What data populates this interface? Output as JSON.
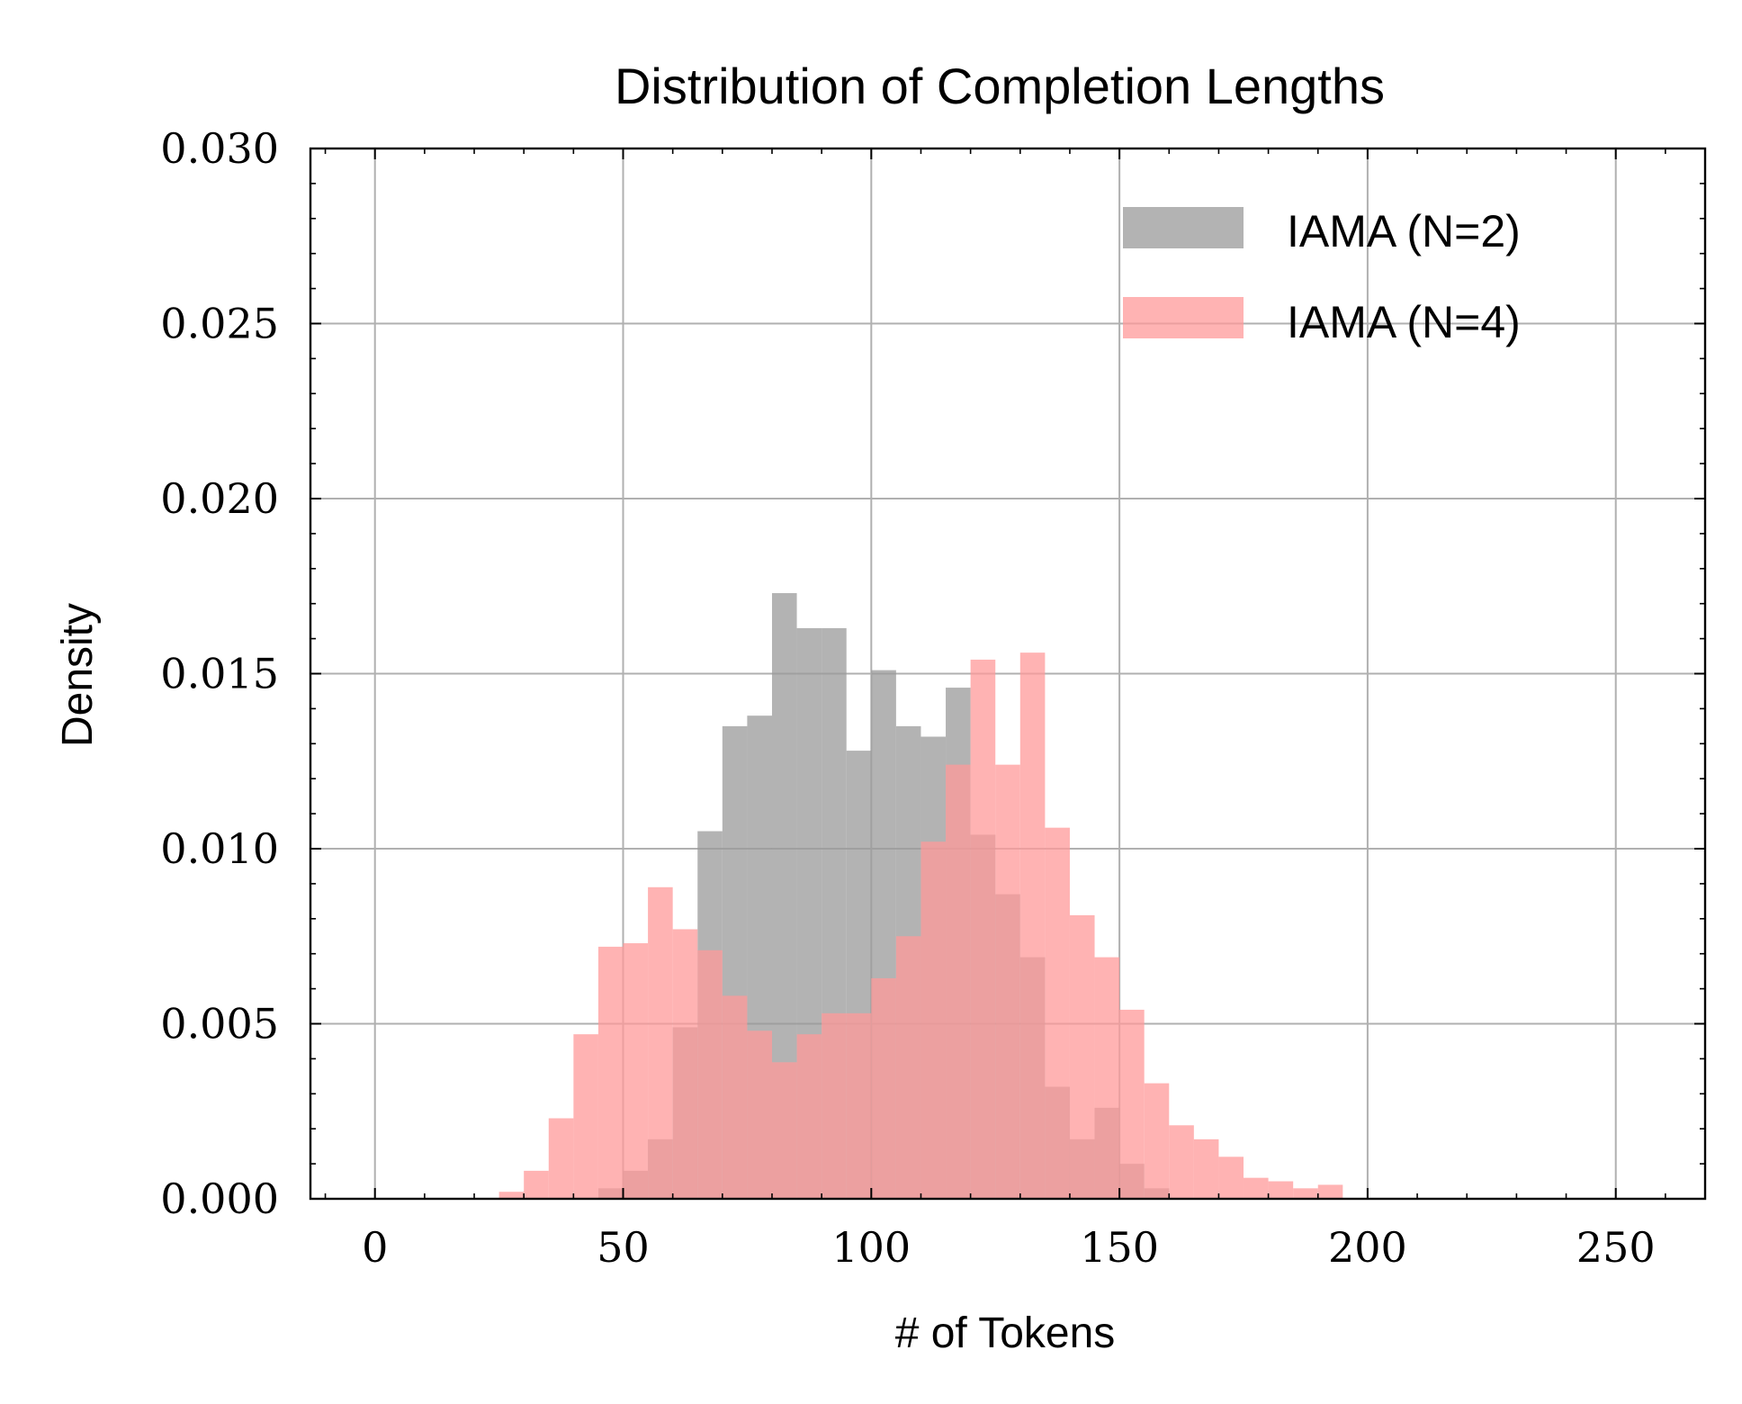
{
  "chart_data": {
    "type": "bar",
    "title": "Distribution of Completion Lengths",
    "xlabel": "# of Tokens",
    "ylabel": "Density",
    "xlim": [
      -13,
      268
    ],
    "ylim": [
      0,
      0.03
    ],
    "xticks": [
      0,
      50,
      100,
      150,
      200,
      250
    ],
    "xtick_labels": [
      "0",
      "50",
      "100",
      "150",
      "200",
      "250"
    ],
    "yticks": [
      0,
      0.005,
      0.01,
      0.015,
      0.02,
      0.025,
      0.03
    ],
    "ytick_labels": [
      "0.000",
      "0.005",
      "0.010",
      "0.015",
      "0.020",
      "0.025",
      "0.030"
    ],
    "grid": true,
    "legend_position": "top-right",
    "bin_width": 5,
    "series": [
      {
        "name": "IAMA (N=2)",
        "color": "#999999",
        "opacity": 0.75,
        "bin_starts": [
          45,
          50,
          55,
          60,
          65,
          70,
          75,
          80,
          85,
          90,
          95,
          100,
          105,
          110,
          115,
          120,
          125,
          130,
          135,
          140,
          145,
          150,
          155
        ],
        "values": [
          0.0003,
          0.0008,
          0.0017,
          0.0049,
          0.0105,
          0.0135,
          0.0138,
          0.0173,
          0.0163,
          0.0163,
          0.0128,
          0.0151,
          0.0135,
          0.0132,
          0.0146,
          0.0104,
          0.0087,
          0.0069,
          0.0032,
          0.0017,
          0.0026,
          0.001,
          0.0003
        ]
      },
      {
        "name": "IAMA (N=4)",
        "color": "#ff9999",
        "opacity": 0.75,
        "bin_starts": [
          25,
          30,
          35,
          40,
          45,
          50,
          55,
          60,
          65,
          70,
          75,
          80,
          85,
          90,
          95,
          100,
          105,
          110,
          115,
          120,
          125,
          130,
          135,
          140,
          145,
          150,
          155,
          160,
          165,
          170,
          175,
          180,
          185,
          190
        ],
        "values": [
          0.0002,
          0.0008,
          0.0023,
          0.0047,
          0.0072,
          0.0073,
          0.0089,
          0.0077,
          0.0071,
          0.0058,
          0.0048,
          0.0039,
          0.0047,
          0.0053,
          0.0053,
          0.0063,
          0.0075,
          0.0102,
          0.0124,
          0.0154,
          0.0124,
          0.0156,
          0.0106,
          0.0081,
          0.0069,
          0.0054,
          0.0033,
          0.0021,
          0.0017,
          0.0012,
          0.0006,
          0.0005,
          0.0003,
          0.0004
        ]
      }
    ]
  }
}
